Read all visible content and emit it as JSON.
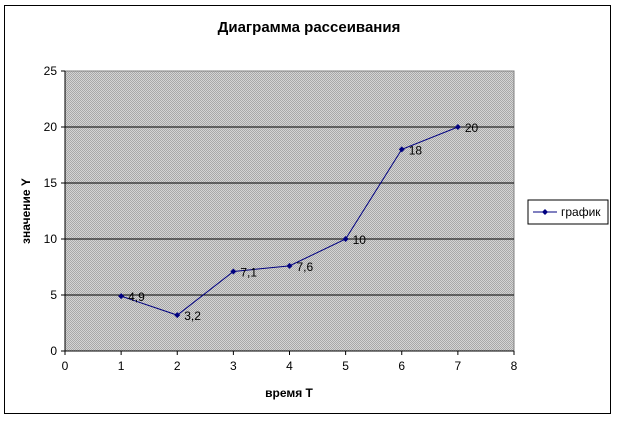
{
  "chart_data": {
    "type": "scatter",
    "title": "Диаграмма рассеивания",
    "xlabel": "время T",
    "ylabel": "значение Y",
    "xlim": [
      0,
      8
    ],
    "ylim": [
      0,
      25
    ],
    "x_ticks": [
      "0",
      "1",
      "2",
      "3",
      "4",
      "5",
      "6",
      "7",
      "8"
    ],
    "y_ticks": [
      "0",
      "5",
      "10",
      "15",
      "20",
      "25"
    ],
    "grid": "horizontal",
    "legend_position": "right",
    "series": [
      {
        "name": "график",
        "color": "#000080",
        "marker": "diamond",
        "x": [
          1,
          2,
          3,
          4,
          5,
          6,
          7
        ],
        "y": [
          4.9,
          3.2,
          7.1,
          7.6,
          10,
          18,
          20
        ],
        "labels": [
          "4,9",
          "3,2",
          "7,1",
          "7,6",
          "10",
          "18",
          "20"
        ]
      }
    ],
    "plot_background": "#c0c0c0"
  }
}
